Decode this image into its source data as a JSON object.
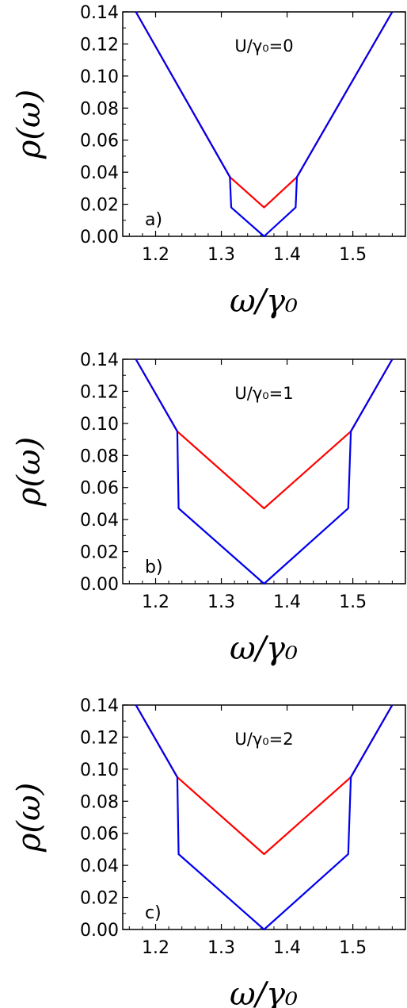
{
  "chart_data": [
    {
      "type": "line",
      "panel_label": "a)",
      "annotation": "U/γ₀=0",
      "xlabel": "ω/γ₀",
      "ylabel": "ρ(ω)",
      "xlim": [
        1.15,
        1.58
      ],
      "ylim": [
        0.0,
        0.14
      ],
      "xticks": [
        "1.2",
        "1.3",
        "1.4",
        "1.5"
      ],
      "yticks": [
        "0.00",
        "0.02",
        "0.04",
        "0.06",
        "0.08",
        "0.10",
        "0.12",
        "0.14"
      ],
      "grid": false,
      "series": [
        {
          "color": "#ff0000",
          "points": [
            [
              1.17,
              0.14
            ],
            [
              1.313,
              0.037
            ],
            [
              1.365,
              0.018
            ],
            [
              1.415,
              0.037
            ],
            [
              1.56,
              0.14
            ]
          ]
        },
        {
          "color": "#0000ee",
          "points": [
            [
              1.17,
              0.14
            ],
            [
              1.313,
              0.037
            ],
            [
              1.315,
              0.018
            ],
            [
              1.365,
              0.0
            ],
            [
              1.413,
              0.018
            ],
            [
              1.415,
              0.037
            ],
            [
              1.56,
              0.14
            ]
          ]
        }
      ]
    },
    {
      "type": "line",
      "panel_label": "b)",
      "annotation": "U/γ₀=1",
      "xlabel": "ω/γ₀",
      "ylabel": "ρ(ω)",
      "xlim": [
        1.15,
        1.58
      ],
      "ylim": [
        0.0,
        0.14
      ],
      "xticks": [
        "1.2",
        "1.3",
        "1.4",
        "1.5"
      ],
      "yticks": [
        "0.00",
        "0.02",
        "0.04",
        "0.06",
        "0.08",
        "0.10",
        "0.12",
        "0.14"
      ],
      "grid": false,
      "series": [
        {
          "color": "#ff0000",
          "points": [
            [
              1.17,
              0.14
            ],
            [
              1.233,
              0.095
            ],
            [
              1.365,
              0.047
            ],
            [
              1.497,
              0.095
            ],
            [
              1.56,
              0.14
            ]
          ]
        },
        {
          "color": "#0000ee",
          "points": [
            [
              1.17,
              0.14
            ],
            [
              1.233,
              0.095
            ],
            [
              1.235,
              0.047
            ],
            [
              1.365,
              0.0
            ],
            [
              1.493,
              0.047
            ],
            [
              1.497,
              0.095
            ],
            [
              1.56,
              0.14
            ]
          ]
        }
      ]
    },
    {
      "type": "line",
      "panel_label": "c)",
      "annotation": "U/γ₀=2",
      "xlabel": "ω/γ₀",
      "ylabel": "ρ(ω)",
      "xlim": [
        1.15,
        1.58
      ],
      "ylim": [
        0.0,
        0.14
      ],
      "xticks": [
        "1.2",
        "1.3",
        "1.4",
        "1.5"
      ],
      "yticks": [
        "0.00",
        "0.02",
        "0.04",
        "0.06",
        "0.08",
        "0.10",
        "0.12",
        "0.14"
      ],
      "grid": false,
      "series": [
        {
          "color": "#ff0000",
          "points": [
            [
              1.17,
              0.14
            ],
            [
              1.233,
              0.095
            ],
            [
              1.365,
              0.047
            ],
            [
              1.497,
              0.095
            ],
            [
              1.56,
              0.14
            ]
          ]
        },
        {
          "color": "#0000ee",
          "points": [
            [
              1.17,
              0.14
            ],
            [
              1.233,
              0.095
            ],
            [
              1.235,
              0.047
            ],
            [
              1.365,
              0.0
            ],
            [
              1.493,
              0.047
            ],
            [
              1.497,
              0.095
            ],
            [
              1.56,
              0.14
            ]
          ]
        }
      ]
    }
  ]
}
